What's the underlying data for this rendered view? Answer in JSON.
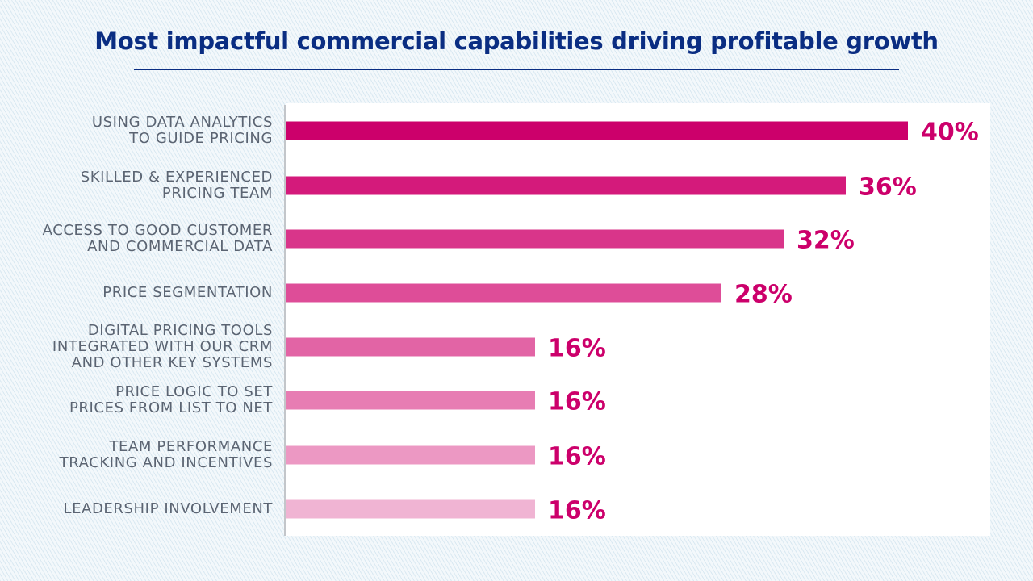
{
  "chart_data": {
    "type": "bar",
    "orientation": "horizontal",
    "title": "Most impactful commercial capabilities driving profitable growth",
    "categories": [
      "USING DATA ANALYTICS\nTO GUIDE PRICING",
      "SKILLED & EXPERIENCED\nPRICING TEAM",
      "ACCESS TO GOOD CUSTOMER\nAND COMMERCIAL DATA",
      "PRICE SEGMENTATION",
      "DIGITAL PRICING TOOLS\nINTEGRATED WITH OUR CRM\nAND OTHER KEY SYSTEMS",
      "PRICE LOGIC TO SET\nPRICES FROM LIST TO NET",
      "TEAM PERFORMANCE\nTRACKING AND INCENTIVES",
      "LEADERSHIP INVOLVEMENT"
    ],
    "values": [
      40,
      36,
      32,
      28,
      16,
      16,
      16,
      16
    ],
    "value_labels": [
      "40%",
      "36%",
      "32%",
      "28%",
      "16%",
      "16%",
      "16%",
      "16%"
    ],
    "unit": "%",
    "xlim": [
      0,
      40
    ],
    "grid": false,
    "bar_colors": [
      "#cc006b",
      "#d41a7b",
      "#d9358a",
      "#de4d98",
      "#e264a5",
      "#e77db3",
      "#ec98c3",
      "#f0b4d3"
    ],
    "label_color": "#cc006b",
    "title_color": "#0a2d82"
  }
}
